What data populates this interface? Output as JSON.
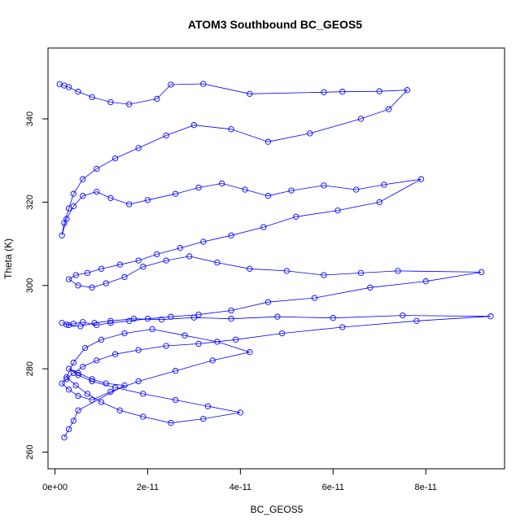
{
  "chart_data": {
    "type": "scatter",
    "title": "ATOM3 Southbound BC_GEOS5",
    "xlabel": "BC_GEOS5",
    "ylabel": "Theta (K)",
    "xlim": [
      -1.5e-12,
      9.7e-11
    ],
    "ylim": [
      256,
      357
    ],
    "x_ticks": [
      0,
      2e-11,
      4e-11,
      6e-11,
      8e-11
    ],
    "x_tick_labels": [
      "0e+00",
      "2e-11",
      "4e-11",
      "6e-11",
      "8e-11"
    ],
    "y_ticks": [
      260,
      280,
      300,
      320,
      340
    ],
    "y_tick_labels": [
      "260",
      "280",
      "300",
      "320",
      "340"
    ],
    "grid": false,
    "legend": "none",
    "marker": "open-circle",
    "connected": true,
    "color": "#0000ff",
    "series": [
      {
        "x": [
          1e-12,
          2e-12,
          3e-12,
          5e-12,
          8e-12,
          1.2e-11,
          1.6e-11,
          2.2e-11,
          2.5e-11,
          3.2e-11,
          4.2e-11,
          5.8e-11,
          6.2e-11,
          7e-11,
          7.6e-11,
          7.2e-11,
          6.6e-11,
          5.5e-11,
          4.6e-11,
          3.8e-11,
          3e-11,
          2.4e-11,
          1.8e-11,
          1.3e-11,
          9e-12,
          6e-12,
          4e-12,
          3e-12,
          2e-12,
          1.5e-12,
          2.5e-12,
          4e-12,
          6e-12,
          9e-12,
          1.2e-11,
          1.6e-11,
          2e-11,
          2.6e-11,
          3.1e-11,
          3.6e-11,
          4.1e-11,
          4.6e-11,
          5.1e-11,
          5.8e-11,
          6.5e-11,
          7.1e-11,
          7.9e-11,
          7e-11,
          6.1e-11,
          5.2e-11,
          4.5e-11,
          3.8e-11,
          3.2e-11,
          2.7e-11,
          2.2e-11,
          1.8e-11,
          1.4e-11,
          1e-11,
          7e-12,
          4.5e-12,
          3e-12,
          5e-12,
          8e-12,
          1.1e-11,
          1.5e-11,
          1.9e-11,
          2.4e-11,
          2.9e-11,
          3.5e-11,
          4.2e-11,
          5e-11,
          5.8e-11,
          6.6e-11,
          7.4e-11,
          9.2e-11,
          8e-11,
          6.8e-11,
          5.6e-11,
          4.6e-11,
          3.8e-11,
          3.1e-11,
          2.5e-11,
          2e-11,
          1.6e-11,
          1.2e-11,
          9e-12,
          6e-12,
          4e-12,
          2.5e-12,
          1.5e-12,
          3e-12,
          5.5e-12,
          8.5e-12,
          1.2e-11,
          1.7e-11,
          2.3e-11,
          3e-11,
          3.8e-11,
          4.8e-11,
          6e-11,
          7.5e-11,
          9.4e-11,
          7.8e-11,
          6.2e-11,
          4.9e-11,
          3.9e-11,
          3.1e-11,
          2.4e-11,
          1.8e-11,
          1.3e-11,
          9e-12,
          6e-12,
          4e-12,
          2.5e-12,
          1.5e-12,
          3e-12,
          5e-12,
          8e-12,
          1.2e-11,
          1.8e-11,
          2.6e-11,
          3.4e-11,
          4.2e-11,
          3.5e-11,
          2.8e-11,
          2.1e-11,
          1.5e-11,
          1e-11,
          6.5e-12,
          4e-12,
          2.5e-12,
          4.5e-12,
          7e-12,
          1e-11,
          1.4e-11,
          1.9e-11,
          2.5e-11,
          3.2e-11,
          4e-11,
          3.3e-11,
          2.6e-11,
          1.9e-11,
          1.3e-11,
          8e-12,
          5e-12,
          3e-12,
          5e-12,
          8e-12,
          1.1e-11,
          1.5e-11,
          5e-12,
          4e-12,
          3e-12,
          2e-12
        ],
        "y": [
          348.3,
          348.0,
          347.6,
          346.5,
          345.2,
          344.0,
          343.5,
          344.8,
          348.2,
          348.4,
          346.0,
          346.4,
          346.5,
          346.6,
          346.9,
          342.3,
          340.0,
          336.5,
          334.5,
          337.5,
          338.5,
          336.0,
          333.0,
          330.5,
          328.0,
          325.5,
          322.0,
          318.5,
          315.0,
          312.0,
          316.0,
          319.0,
          321.5,
          322.5,
          321.0,
          319.5,
          320.5,
          322.0,
          323.5,
          324.5,
          323.0,
          321.5,
          322.8,
          324.0,
          323.0,
          324.2,
          325.5,
          320.0,
          318.0,
          316.5,
          314.0,
          312.0,
          310.5,
          309.0,
          307.5,
          306.0,
          305.0,
          304.0,
          303.0,
          302.5,
          301.5,
          300.0,
          299.5,
          300.5,
          302.0,
          304.5,
          306.0,
          307.0,
          305.5,
          304.0,
          303.5,
          302.5,
          303.0,
          303.5,
          303.2,
          301.0,
          299.5,
          297.0,
          296.0,
          294.0,
          293.0,
          292.5,
          292.0,
          291.5,
          291.0,
          290.5,
          291.2,
          290.8,
          290.6,
          291.0,
          290.5,
          290.2,
          291.0,
          291.5,
          292.0,
          291.8,
          292.3,
          292.0,
          292.5,
          292.2,
          292.8,
          292.6,
          291.5,
          290.0,
          288.5,
          287.0,
          286.0,
          285.5,
          284.5,
          283.5,
          282.0,
          280.5,
          279.0,
          277.5,
          276.5,
          275.0,
          273.5,
          272.5,
          274.5,
          277.0,
          279.5,
          282.0,
          284.0,
          286.5,
          288.0,
          289.5,
          288.5,
          287.0,
          285.0,
          281.5,
          278.0,
          276.0,
          274.0,
          272.0,
          270.0,
          268.5,
          267.0,
          268.0,
          269.5,
          271.0,
          272.5,
          274.0,
          275.5,
          277.0,
          278.5,
          280.0,
          279.0,
          277.5,
          276.5,
          276.0,
          270.0,
          267.5,
          265.5,
          263.5
        ]
      }
    ]
  }
}
